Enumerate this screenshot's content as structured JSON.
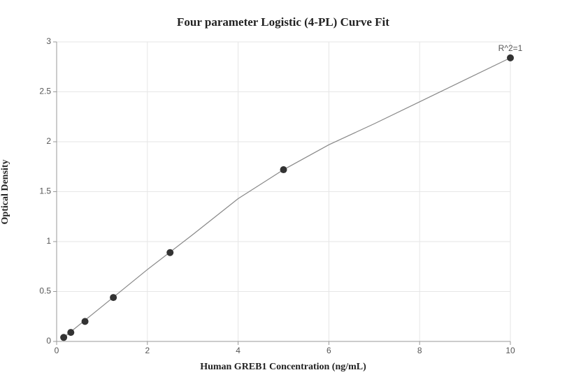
{
  "chart_data": {
    "type": "scatter",
    "title": "Four parameter Logistic (4-PL) Curve Fit",
    "x_label": "Human GREB1 Concentration (ng/mL)",
    "y_label": "Optical Density",
    "annotation": "R^2=1",
    "x": [
      0.156,
      0.3125,
      0.625,
      1.25,
      2.5,
      5,
      10
    ],
    "values": [
      0.04,
      0.09,
      0.2,
      0.44,
      0.89,
      1.72,
      2.84
    ],
    "color": "#333333",
    "curve": {
      "x": [
        0.156,
        1,
        2,
        3,
        4,
        5,
        6,
        7,
        8,
        9,
        10
      ],
      "values": [
        0.04,
        0.35,
        0.72,
        1.07,
        1.43,
        1.72,
        1.97,
        2.18,
        2.4,
        2.62,
        2.84
      ],
      "color": "#888888"
    },
    "xlim": [
      0,
      10
    ],
    "ylim": [
      0,
      3
    ],
    "xticks": [
      0,
      2,
      4,
      6,
      8,
      10
    ],
    "yticks": [
      0,
      0.5,
      1,
      1.5,
      2,
      2.5,
      3
    ],
    "grid": true
  }
}
